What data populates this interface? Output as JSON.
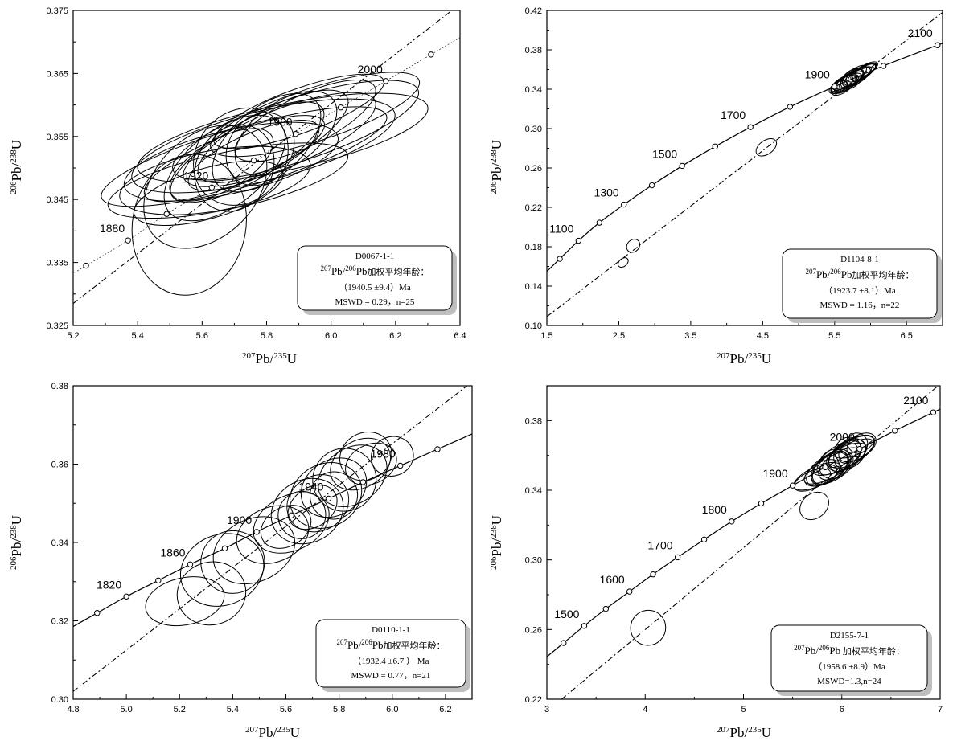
{
  "chart_data": [
    {
      "type": "scatter",
      "xlabel": "207Pb/235U",
      "ylabel": "206Pb/238U",
      "xlim": [
        5.2,
        6.4
      ],
      "ylim": [
        0.325,
        0.375
      ],
      "xticks": [
        "5.2",
        "5.4",
        "5.6",
        "5.8",
        "6.0",
        "6.2",
        "6.4"
      ],
      "yticks": [
        "0.325",
        "0.335",
        "0.345",
        "0.355",
        "0.365",
        "0.375"
      ],
      "concordia_ages": [
        {
          "x": 5.24,
          "y": 0.3345,
          "label": ""
        },
        {
          "x": 5.37,
          "y": 0.3385,
          "label": "1880"
        },
        {
          "x": 5.49,
          "y": 0.3427,
          "label": ""
        },
        {
          "x": 5.63,
          "y": 0.3469,
          "label": "1920"
        },
        {
          "x": 5.76,
          "y": 0.3512,
          "label": ""
        },
        {
          "x": 5.89,
          "y": 0.3554,
          "label": "1960"
        },
        {
          "x": 6.03,
          "y": 0.3596,
          "label": ""
        },
        {
          "x": 6.17,
          "y": 0.3638,
          "label": "2000"
        },
        {
          "x": 6.31,
          "y": 0.368,
          "label": ""
        }
      ],
      "discordia": [
        [
          5.2,
          0.3285
        ],
        [
          6.4,
          0.376
        ]
      ],
      "ellipses": [
        {
          "x": 5.73,
          "y": 0.3518,
          "rx": 0.46,
          "ry": 0.0047,
          "angle": 16
        },
        {
          "x": 5.79,
          "y": 0.3535,
          "rx": 0.42,
          "ry": 0.0055,
          "angle": 14
        },
        {
          "x": 5.85,
          "y": 0.3548,
          "rx": 0.46,
          "ry": 0.0052,
          "angle": 12
        },
        {
          "x": 5.69,
          "y": 0.351,
          "rx": 0.34,
          "ry": 0.005,
          "angle": 13
        },
        {
          "x": 5.89,
          "y": 0.356,
          "rx": 0.4,
          "ry": 0.005,
          "angle": 18
        },
        {
          "x": 5.64,
          "y": 0.348,
          "rx": 0.3,
          "ry": 0.0048,
          "angle": 10
        },
        {
          "x": 5.67,
          "y": 0.35,
          "rx": 0.22,
          "ry": 0.006,
          "angle": 38
        },
        {
          "x": 5.61,
          "y": 0.347,
          "rx": 0.22,
          "ry": 0.008,
          "angle": 45
        },
        {
          "x": 5.95,
          "y": 0.3585,
          "rx": 0.34,
          "ry": 0.0042,
          "angle": 18
        },
        {
          "x": 5.84,
          "y": 0.3545,
          "rx": 0.32,
          "ry": 0.0046,
          "angle": 22
        },
        {
          "x": 5.74,
          "y": 0.3525,
          "rx": 0.27,
          "ry": 0.0046,
          "angle": 30
        },
        {
          "x": 5.72,
          "y": 0.3518,
          "rx": 0.16,
          "ry": 0.007,
          "angle": 50
        },
        {
          "x": 5.8,
          "y": 0.354,
          "rx": 0.2,
          "ry": 0.0055,
          "angle": 40
        },
        {
          "x": 5.7,
          "y": 0.3515,
          "rx": 0.3,
          "ry": 0.004,
          "angle": 22
        },
        {
          "x": 5.62,
          "y": 0.346,
          "rx": 0.24,
          "ry": 0.004,
          "angle": 16
        },
        {
          "x": 5.86,
          "y": 0.3555,
          "rx": 0.18,
          "ry": 0.005,
          "angle": 35
        },
        {
          "x": 5.92,
          "y": 0.3575,
          "rx": 0.24,
          "ry": 0.004,
          "angle": 26
        },
        {
          "x": 5.66,
          "y": 0.3505,
          "rx": 0.18,
          "ry": 0.004,
          "angle": 30
        },
        {
          "x": 5.78,
          "y": 0.353,
          "rx": 0.12,
          "ry": 0.005,
          "angle": 55
        },
        {
          "x": 5.56,
          "y": 0.341,
          "rx": 0.22,
          "ry": 0.009,
          "angle": 80
        },
        {
          "x": 5.9,
          "y": 0.359,
          "rx": 0.28,
          "ry": 0.0035,
          "angle": 20
        },
        {
          "x": 5.76,
          "y": 0.352,
          "rx": 0.22,
          "ry": 0.0035,
          "angle": 24
        },
        {
          "x": 5.7,
          "y": 0.35,
          "rx": 0.14,
          "ry": 0.006,
          "angle": 60
        },
        {
          "x": 5.82,
          "y": 0.355,
          "rx": 0.26,
          "ry": 0.0044,
          "angle": 28
        },
        {
          "x": 5.68,
          "y": 0.348,
          "rx": 0.38,
          "ry": 0.0045,
          "angle": 12
        }
      ],
      "legend": {
        "position": "bottom-right",
        "sample": "D0067-1-1",
        "age_label": "207Pb/206Pb加权平均年龄：",
        "age_value": "（1940.5 ±9.4）Ma",
        "mswd": "MSWD = 0.29，n=25"
      }
    },
    {
      "type": "scatter",
      "xlabel": "207Pb/235U",
      "ylabel": "206Pb/238U",
      "xlim": [
        1.5,
        7.0
      ],
      "ylim": [
        0.1,
        0.42
      ],
      "xticks": [
        "1.5",
        "2.5",
        "3.5",
        "4.5",
        "5.5",
        "6.5"
      ],
      "yticks": [
        "0.10",
        "0.14",
        "0.18",
        "0.22",
        "0.26",
        "0.30",
        "0.34",
        "0.38",
        "0.42"
      ],
      "concordia_ages": [
        {
          "x": 1.68,
          "y": 0.1677,
          "label": ""
        },
        {
          "x": 1.94,
          "y": 0.1861,
          "label": "1100"
        },
        {
          "x": 2.23,
          "y": 0.2044,
          "label": ""
        },
        {
          "x": 2.57,
          "y": 0.2228,
          "label": "1300"
        },
        {
          "x": 2.96,
          "y": 0.2424,
          "label": ""
        },
        {
          "x": 3.38,
          "y": 0.2621,
          "label": "1500"
        },
        {
          "x": 3.84,
          "y": 0.2818,
          "label": ""
        },
        {
          "x": 4.33,
          "y": 0.3015,
          "label": "1700"
        },
        {
          "x": 4.88,
          "y": 0.3221,
          "label": ""
        },
        {
          "x": 5.5,
          "y": 0.3427,
          "label": "1900"
        },
        {
          "x": 6.18,
          "y": 0.3637,
          "label": ""
        },
        {
          "x": 6.93,
          "y": 0.3847,
          "label": "2100"
        }
      ],
      "discordia": [
        [
          1.5,
          0.109
        ],
        [
          7.0,
          0.418
        ]
      ],
      "ellipses": [
        {
          "x": 5.75,
          "y": 0.351,
          "rx": 0.3,
          "ry": 0.0055,
          "angle": 30
        },
        {
          "x": 5.7,
          "y": 0.349,
          "rx": 0.24,
          "ry": 0.006,
          "angle": 35
        },
        {
          "x": 5.8,
          "y": 0.353,
          "rx": 0.22,
          "ry": 0.007,
          "angle": 30
        },
        {
          "x": 5.65,
          "y": 0.347,
          "rx": 0.2,
          "ry": 0.005,
          "angle": 25
        },
        {
          "x": 5.85,
          "y": 0.355,
          "rx": 0.25,
          "ry": 0.006,
          "angle": 32
        },
        {
          "x": 5.72,
          "y": 0.35,
          "rx": 0.28,
          "ry": 0.007,
          "angle": 40
        },
        {
          "x": 5.6,
          "y": 0.345,
          "rx": 0.18,
          "ry": 0.006,
          "angle": 35
        },
        {
          "x": 5.78,
          "y": 0.352,
          "rx": 0.14,
          "ry": 0.007,
          "angle": 45
        },
        {
          "x": 5.9,
          "y": 0.358,
          "rx": 0.2,
          "ry": 0.005,
          "angle": 30
        },
        {
          "x": 5.55,
          "y": 0.342,
          "rx": 0.14,
          "ry": 0.005,
          "angle": 30
        },
        {
          "x": 5.68,
          "y": 0.348,
          "rx": 0.26,
          "ry": 0.005,
          "angle": 28
        },
        {
          "x": 5.82,
          "y": 0.354,
          "rx": 0.3,
          "ry": 0.006,
          "angle": 32
        },
        {
          "x": 5.74,
          "y": 0.3505,
          "rx": 0.18,
          "ry": 0.008,
          "angle": 40
        },
        {
          "x": 5.66,
          "y": 0.346,
          "rx": 0.24,
          "ry": 0.006,
          "angle": 30
        },
        {
          "x": 5.88,
          "y": 0.3565,
          "rx": 0.22,
          "ry": 0.005,
          "angle": 30
        },
        {
          "x": 5.76,
          "y": 0.3515,
          "rx": 0.32,
          "ry": 0.005,
          "angle": 26
        },
        {
          "x": 5.62,
          "y": 0.344,
          "rx": 0.2,
          "ry": 0.007,
          "angle": 35
        },
        {
          "x": 5.94,
          "y": 0.36,
          "rx": 0.18,
          "ry": 0.005,
          "angle": 30
        },
        {
          "x": 5.71,
          "y": 0.3495,
          "rx": 0.12,
          "ry": 0.006,
          "angle": 50
        },
        {
          "x": 4.55,
          "y": 0.281,
          "rx": 0.16,
          "ry": 0.007,
          "angle": 35
        },
        {
          "x": 2.7,
          "y": 0.181,
          "rx": 0.1,
          "ry": 0.006,
          "angle": 45
        },
        {
          "x": 2.56,
          "y": 0.164,
          "rx": 0.08,
          "ry": 0.004,
          "angle": 40
        }
      ],
      "legend": {
        "position": "bottom-right",
        "sample": "D1104-8-1",
        "age_label": "207Pb/206Pb加权平均年龄：",
        "age_value": "（1923.7 ±8.1）Ma",
        "mswd": "MSWD = 1.16，n=22"
      }
    },
    {
      "type": "scatter",
      "xlabel": "207Pb/235U",
      "ylabel": "206Pb/238U",
      "xlim": [
        4.8,
        6.3
      ],
      "ylim": [
        0.3,
        0.38
      ],
      "xticks": [
        "4.8",
        "5.0",
        "5.2",
        "5.4",
        "5.6",
        "5.8",
        "6.0",
        "6.2"
      ],
      "yticks": [
        "0.30",
        "0.32",
        "0.34",
        "0.36",
        "0.38"
      ],
      "concordia_ages": [
        {
          "x": 4.89,
          "y": 0.322,
          "label": ""
        },
        {
          "x": 5.0,
          "y": 0.3262,
          "label": "1820"
        },
        {
          "x": 5.12,
          "y": 0.3303,
          "label": ""
        },
        {
          "x": 5.24,
          "y": 0.3344,
          "label": "1860"
        },
        {
          "x": 5.37,
          "y": 0.3385,
          "label": ""
        },
        {
          "x": 5.49,
          "y": 0.3427,
          "label": "1900"
        },
        {
          "x": 5.62,
          "y": 0.3469,
          "label": ""
        },
        {
          "x": 5.76,
          "y": 0.3512,
          "label": "1940"
        },
        {
          "x": 5.89,
          "y": 0.3554,
          "label": ""
        },
        {
          "x": 6.03,
          "y": 0.3596,
          "label": "1980"
        },
        {
          "x": 6.17,
          "y": 0.3638,
          "label": ""
        }
      ],
      "discordia": [
        [
          4.8,
          0.302
        ],
        [
          6.3,
          0.381
        ]
      ],
      "ellipses": [
        {
          "x": 5.22,
          "y": 0.325,
          "rx": 0.15,
          "ry": 0.006,
          "angle": 12
        },
        {
          "x": 5.32,
          "y": 0.327,
          "rx": 0.13,
          "ry": 0.008,
          "angle": 16
        },
        {
          "x": 5.36,
          "y": 0.333,
          "rx": 0.16,
          "ry": 0.009,
          "angle": 22
        },
        {
          "x": 5.4,
          "y": 0.335,
          "rx": 0.12,
          "ry": 0.008,
          "angle": 15
        },
        {
          "x": 5.48,
          "y": 0.338,
          "rx": 0.16,
          "ry": 0.008,
          "angle": 25
        },
        {
          "x": 5.55,
          "y": 0.342,
          "rx": 0.14,
          "ry": 0.007,
          "angle": 22
        },
        {
          "x": 5.62,
          "y": 0.345,
          "rx": 0.15,
          "ry": 0.007,
          "angle": 26
        },
        {
          "x": 5.68,
          "y": 0.348,
          "rx": 0.14,
          "ry": 0.008,
          "angle": 28
        },
        {
          "x": 5.72,
          "y": 0.35,
          "rx": 0.12,
          "ry": 0.007,
          "angle": 30
        },
        {
          "x": 5.75,
          "y": 0.352,
          "rx": 0.14,
          "ry": 0.008,
          "angle": 30
        },
        {
          "x": 5.78,
          "y": 0.354,
          "rx": 0.13,
          "ry": 0.007,
          "angle": 32
        },
        {
          "x": 5.82,
          "y": 0.356,
          "rx": 0.12,
          "ry": 0.008,
          "angle": 30
        },
        {
          "x": 5.85,
          "y": 0.357,
          "rx": 0.14,
          "ry": 0.007,
          "angle": 34
        },
        {
          "x": 5.88,
          "y": 0.36,
          "rx": 0.12,
          "ry": 0.006,
          "angle": 30
        },
        {
          "x": 5.9,
          "y": 0.362,
          "rx": 0.1,
          "ry": 0.006,
          "angle": 30
        },
        {
          "x": 5.92,
          "y": 0.36,
          "rx": 0.1,
          "ry": 0.005,
          "angle": 25
        },
        {
          "x": 6.0,
          "y": 0.362,
          "rx": 0.08,
          "ry": 0.005,
          "angle": 20
        },
        {
          "x": 5.7,
          "y": 0.349,
          "rx": 0.1,
          "ry": 0.005,
          "angle": 35
        },
        {
          "x": 5.78,
          "y": 0.352,
          "rx": 0.09,
          "ry": 0.006,
          "angle": 40
        },
        {
          "x": 5.6,
          "y": 0.344,
          "rx": 0.1,
          "ry": 0.005,
          "angle": 30
        },
        {
          "x": 5.66,
          "y": 0.347,
          "rx": 0.09,
          "ry": 0.006,
          "angle": 40
        }
      ],
      "legend": {
        "position": "bottom-right",
        "sample": "D0110-1-1",
        "age_label": "207Pb/206Pb加权平均年龄：",
        "age_value": "（1932.4 ±6.7 ）  Ma",
        "mswd": "MSWD = 0.77，n=21"
      }
    },
    {
      "type": "scatter",
      "xlabel": "207Pb/235U",
      "ylabel": "206Pb/238U",
      "xlim": [
        3.0,
        7.0
      ],
      "ylim": [
        0.22,
        0.4
      ],
      "xticks": [
        "3",
        "4",
        "5",
        "6",
        "7"
      ],
      "yticks": [
        "0.22",
        "0.26",
        "0.30",
        "0.34",
        "0.38"
      ],
      "concordia_ages": [
        {
          "x": 3.17,
          "y": 0.2523,
          "label": ""
        },
        {
          "x": 3.38,
          "y": 0.2621,
          "label": "1500"
        },
        {
          "x": 3.6,
          "y": 0.2719,
          "label": ""
        },
        {
          "x": 3.84,
          "y": 0.2818,
          "label": "1600"
        },
        {
          "x": 4.08,
          "y": 0.2917,
          "label": ""
        },
        {
          "x": 4.33,
          "y": 0.3015,
          "label": "1700"
        },
        {
          "x": 4.6,
          "y": 0.3117,
          "label": ""
        },
        {
          "x": 4.88,
          "y": 0.3221,
          "label": "1800"
        },
        {
          "x": 5.18,
          "y": 0.3324,
          "label": ""
        },
        {
          "x": 5.5,
          "y": 0.3427,
          "label": "1900"
        },
        {
          "x": 5.83,
          "y": 0.3532,
          "label": ""
        },
        {
          "x": 6.18,
          "y": 0.3637,
          "label": "2000"
        },
        {
          "x": 6.54,
          "y": 0.3742,
          "label": ""
        },
        {
          "x": 6.93,
          "y": 0.3847,
          "label": "2100"
        }
      ],
      "discordia": [
        [
          3.15,
          0.22
        ],
        [
          6.98,
          0.4
        ]
      ],
      "ellipses": [
        {
          "x": 5.9,
          "y": 0.354,
          "rx": 0.32,
          "ry": 0.006,
          "angle": 30
        },
        {
          "x": 6.0,
          "y": 0.358,
          "rx": 0.28,
          "ry": 0.006,
          "angle": 28
        },
        {
          "x": 6.1,
          "y": 0.362,
          "rx": 0.26,
          "ry": 0.0065,
          "angle": 30
        },
        {
          "x": 5.85,
          "y": 0.352,
          "rx": 0.24,
          "ry": 0.007,
          "angle": 35
        },
        {
          "x": 5.95,
          "y": 0.356,
          "rx": 0.3,
          "ry": 0.008,
          "angle": 40
        },
        {
          "x": 6.05,
          "y": 0.36,
          "rx": 0.22,
          "ry": 0.007,
          "angle": 35
        },
        {
          "x": 5.8,
          "y": 0.35,
          "rx": 0.2,
          "ry": 0.006,
          "angle": 30
        },
        {
          "x": 6.15,
          "y": 0.364,
          "rx": 0.2,
          "ry": 0.006,
          "angle": 30
        },
        {
          "x": 5.75,
          "y": 0.348,
          "rx": 0.26,
          "ry": 0.0055,
          "angle": 25
        },
        {
          "x": 6.02,
          "y": 0.359,
          "rx": 0.34,
          "ry": 0.006,
          "angle": 28
        },
        {
          "x": 5.92,
          "y": 0.355,
          "rx": 0.16,
          "ry": 0.008,
          "angle": 45
        },
        {
          "x": 6.08,
          "y": 0.361,
          "rx": 0.18,
          "ry": 0.0075,
          "angle": 40
        },
        {
          "x": 5.7,
          "y": 0.346,
          "rx": 0.2,
          "ry": 0.005,
          "angle": 25
        },
        {
          "x": 6.2,
          "y": 0.366,
          "rx": 0.16,
          "ry": 0.006,
          "angle": 30
        },
        {
          "x": 5.88,
          "y": 0.353,
          "rx": 0.22,
          "ry": 0.007,
          "angle": 38
        },
        {
          "x": 6.12,
          "y": 0.365,
          "rx": 0.22,
          "ry": 0.005,
          "angle": 22
        },
        {
          "x": 5.98,
          "y": 0.357,
          "rx": 0.12,
          "ry": 0.006,
          "angle": 50
        },
        {
          "x": 6.06,
          "y": 0.363,
          "rx": 0.14,
          "ry": 0.007,
          "angle": 45
        },
        {
          "x": 5.82,
          "y": 0.349,
          "rx": 0.14,
          "ry": 0.005,
          "angle": 30
        },
        {
          "x": 6.0,
          "y": 0.36,
          "rx": 0.18,
          "ry": 0.005,
          "angle": 32
        },
        {
          "x": 5.94,
          "y": 0.354,
          "rx": 0.2,
          "ry": 0.006,
          "angle": 34
        },
        {
          "x": 6.16,
          "y": 0.367,
          "rx": 0.1,
          "ry": 0.006,
          "angle": 40
        },
        {
          "x": 5.72,
          "y": 0.331,
          "rx": 0.16,
          "ry": 0.007,
          "angle": 40
        },
        {
          "x": 4.03,
          "y": 0.261,
          "rx": 0.18,
          "ry": 0.01,
          "angle": 45
        }
      ],
      "legend": {
        "position": "bottom-right",
        "sample": "D2155-7-1",
        "age_label": "207Pb/206Pb 加权平均年龄：",
        "age_value": "（1958.6 ±8.9）Ma",
        "mswd": "MSWD=1.3,n=24"
      }
    }
  ]
}
